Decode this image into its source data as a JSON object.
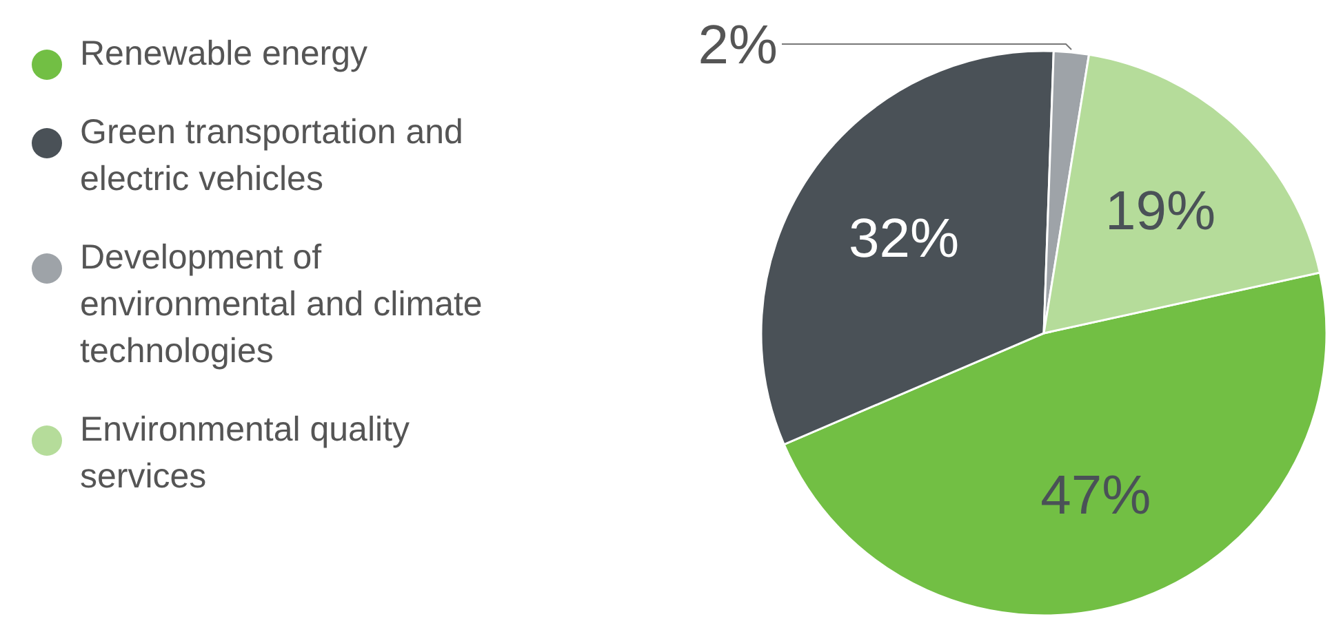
{
  "chart_data": {
    "type": "pie",
    "categories": [
      "Renewable energy",
      "Green transportation and electric vehicles",
      "Development of environmental and climate technologies",
      "Environmental quality services"
    ],
    "values": [
      47,
      32,
      2,
      19
    ],
    "colors": [
      "#72bf44",
      "#4a5157",
      "#9ea3a8",
      "#b5dc9a"
    ],
    "value_labels": [
      "47%",
      "32%",
      "2%",
      "19%"
    ],
    "legend": "left"
  }
}
